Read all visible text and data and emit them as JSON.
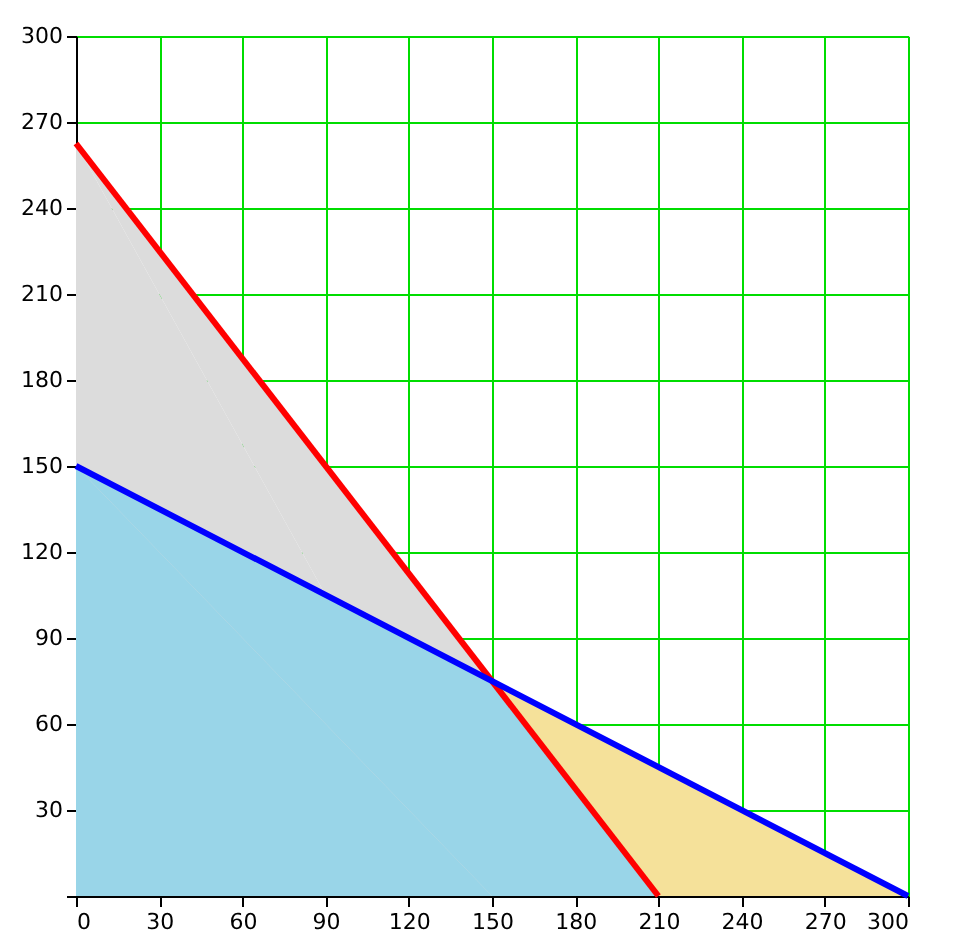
{
  "chart_data": {
    "type": "line",
    "series": [
      {
        "type": "area",
        "color": "#dcdcdc",
        "x": [
          0,
          150
        ],
        "values": [
          262.5,
          75
        ]
      },
      {
        "type": "area",
        "color": "#f5e19a",
        "x": [
          150,
          300
        ],
        "values": [
          75,
          0
        ]
      },
      {
        "type": "area",
        "color": "#99d5e8",
        "x": [
          0,
          150,
          210
        ],
        "values": [
          150,
          75,
          0
        ]
      },
      {
        "color": "#ff0000",
        "x": [
          0,
          210
        ],
        "values": [
          262.5,
          0
        ]
      },
      {
        "color": "#0000ff",
        "x": [
          0,
          300
        ],
        "values": [
          150,
          0
        ]
      }
    ],
    "xlim": [
      0,
      300
    ],
    "ylim": [
      0,
      300
    ],
    "xticks": [
      0,
      30,
      60,
      90,
      120,
      150,
      180,
      210,
      240,
      270,
      300
    ],
    "yticks": [
      {
        "value": 0,
        "label": null
      },
      30,
      60,
      90,
      120,
      150,
      180,
      210,
      240,
      270,
      300
    ],
    "grid": true,
    "marker": "none",
    "line_style": "solid"
  }
}
